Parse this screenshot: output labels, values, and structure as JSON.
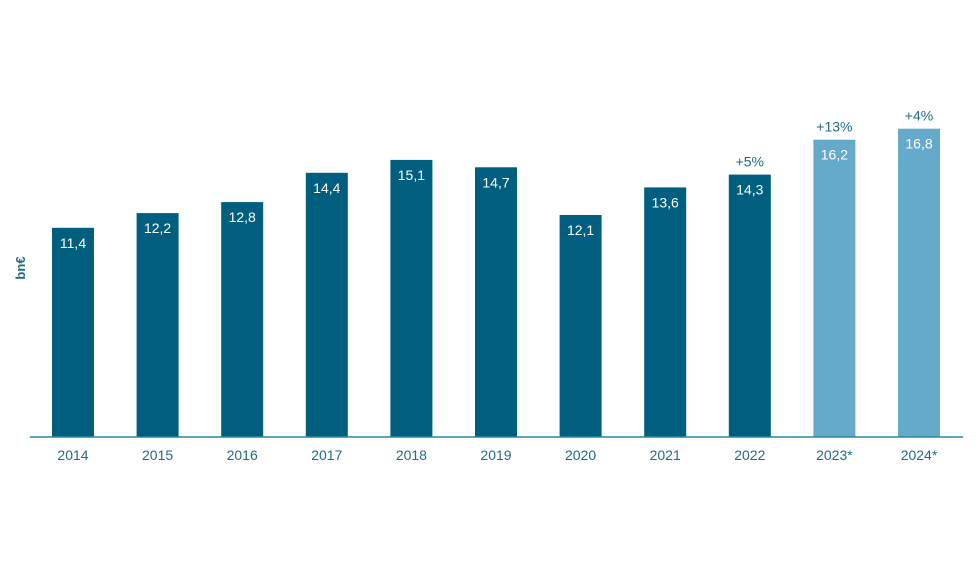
{
  "chart_data": {
    "type": "bar",
    "title": "",
    "xlabel": "",
    "ylabel": "bn€",
    "ylim": [
      0,
      18
    ],
    "grid": false,
    "categories": [
      "2014",
      "2015",
      "2016",
      "2017",
      "2018",
      "2019",
      "2020",
      "2021",
      "2022",
      "2023*",
      "2024*"
    ],
    "values": [
      11.4,
      12.2,
      12.8,
      14.4,
      15.1,
      14.7,
      12.1,
      13.6,
      14.3,
      16.2,
      16.8
    ],
    "value_labels": [
      "11,4",
      "12,2",
      "12,8",
      "14,4",
      "15,1",
      "14,7",
      "12,1",
      "13,6",
      "14,3",
      "16,2",
      "16,8"
    ],
    "bar_colors": [
      "#005f7f",
      "#005f7f",
      "#005f7f",
      "#005f7f",
      "#005f7f",
      "#005f7f",
      "#005f7f",
      "#005f7f",
      "#005f7f",
      "#66aacb",
      "#66aacb"
    ],
    "annotations": [
      {
        "category": "2022",
        "text": "+5%"
      },
      {
        "category": "2023*",
        "text": "+13%"
      },
      {
        "category": "2024*",
        "text": "+4%"
      }
    ]
  },
  "colors": {
    "actual": "#005f7f",
    "forecast": "#66aacb",
    "axis": "#2a86a6",
    "tick_text": "#1f6b86",
    "annotation_text": "#1f6b86",
    "value_label_text": "#ffffff"
  }
}
